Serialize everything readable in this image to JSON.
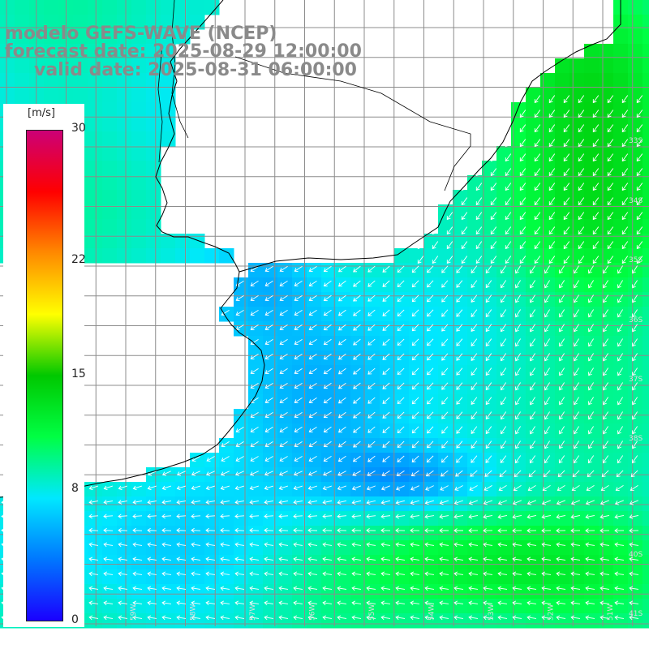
{
  "header": {
    "model": "modelo GEFS-WAVE (NCEP)",
    "forecast": "forecast date: 2025-08-29 12:00:00",
    "valid": "valid date: 2025-08-31 06:00:00"
  },
  "colorbar": {
    "unit": "[m/s]",
    "ticks": [
      {
        "value": 30,
        "label": "30"
      },
      {
        "value": 22,
        "label": "22"
      },
      {
        "value": 15,
        "label": "15"
      },
      {
        "value": 8,
        "label": "8"
      },
      {
        "value": 0,
        "label": "0"
      }
    ],
    "min": 0,
    "max": 30,
    "colors": [
      "#1a00ff",
      "#0077ff",
      "#00e8ff",
      "#00ff44",
      "#00c800",
      "#ffff00",
      "#ff8a00",
      "#ff0000",
      "#cc0077"
    ]
  },
  "map": {
    "type": "wind speed and direction",
    "land_color": "#ffffff",
    "grid_color": "#8c8c8c",
    "coast_color": "#000000",
    "arrow_color": "#ffffff",
    "lat_labels": [
      "33S",
      "34S",
      "35S",
      "36S",
      "37S",
      "38S",
      "40S",
      "41S"
    ],
    "lon_labels": [
      "61W",
      "60W",
      "59W",
      "58W",
      "57W",
      "56W",
      "55W",
      "54W",
      "53W",
      "52W",
      "51W"
    ]
  }
}
